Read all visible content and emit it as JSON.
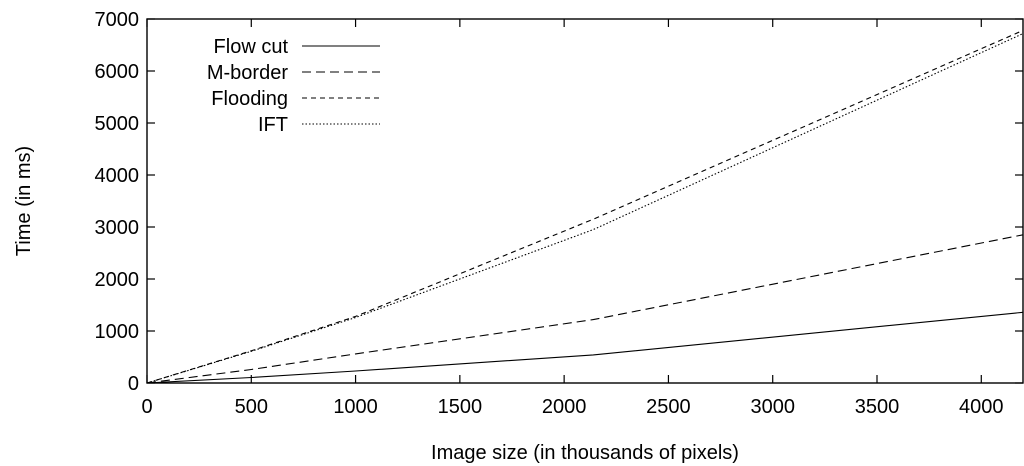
{
  "chart_data": {
    "type": "line",
    "xlabel": "Image size (in thousands of pixels)",
    "ylabel": "Time (in ms)",
    "xlim": [
      0,
      4200
    ],
    "ylim": [
      0,
      7000
    ],
    "xticks": [
      0,
      500,
      1000,
      1500,
      2000,
      2500,
      3000,
      3500,
      4000
    ],
    "yticks": [
      0,
      1000,
      2000,
      3000,
      4000,
      5000,
      6000,
      7000
    ],
    "grid": false,
    "legend_position": "top-left",
    "series": [
      {
        "name": "Flow cut",
        "dash": "solid",
        "x": [
          0,
          500,
          1000,
          2140,
          4200
        ],
        "y": [
          0,
          105,
          230,
          540,
          1360
        ]
      },
      {
        "name": "M-border",
        "dash": "long-dash",
        "x": [
          0,
          500,
          1000,
          2140,
          4200
        ],
        "y": [
          0,
          260,
          560,
          1220,
          2850
        ]
      },
      {
        "name": "Flooding",
        "dash": "short-dash",
        "x": [
          0,
          500,
          1000,
          2140,
          4200
        ],
        "y": [
          0,
          620,
          1280,
          3150,
          6780
        ]
      },
      {
        "name": "IFT",
        "dash": "dotted",
        "x": [
          0,
          500,
          1000,
          2140,
          4200
        ],
        "y": [
          0,
          610,
          1260,
          2950,
          6720
        ]
      }
    ]
  }
}
